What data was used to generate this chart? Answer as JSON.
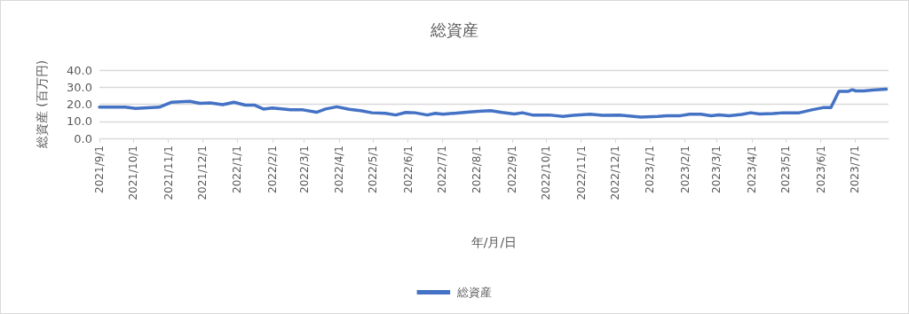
{
  "chart_data": {
    "type": "line",
    "title": "総資産",
    "xlabel": "年/月/日",
    "ylabel": "総資産 (百万円)",
    "x": [
      "2021-09-01",
      "2021-09-24",
      "2021-10-03",
      "2021-10-24",
      "2021-11-04",
      "2021-11-20",
      "2021-11-29",
      "2021-12-08",
      "2021-12-19",
      "2021-12-29",
      "2022-01-08",
      "2022-01-16",
      "2022-01-24",
      "2022-02-01",
      "2022-02-17",
      "2022-02-28",
      "2022-03-12",
      "2022-03-20",
      "2022-03-30",
      "2022-04-10",
      "2022-04-20",
      "2022-04-30",
      "2022-05-12",
      "2022-05-21",
      "2022-05-30",
      "2022-06-07",
      "2022-06-18",
      "2022-06-25",
      "2022-07-02",
      "2022-07-12",
      "2022-07-23",
      "2022-08-02",
      "2022-08-13",
      "2022-08-23",
      "2022-09-03",
      "2022-09-10",
      "2022-09-19",
      "2022-10-04",
      "2022-10-16",
      "2022-10-25",
      "2022-11-09",
      "2022-11-20",
      "2022-12-05",
      "2022-12-24",
      "2023-01-08",
      "2023-01-16",
      "2023-01-28",
      "2023-02-05",
      "2023-02-15",
      "2023-02-24",
      "2023-03-03",
      "2023-03-12",
      "2023-03-23",
      "2023-03-31",
      "2023-04-08",
      "2023-04-20",
      "2023-04-29",
      "2023-05-13",
      "2023-05-24",
      "2023-06-03",
      "2023-06-10",
      "2023-06-17",
      "2023-06-25",
      "2023-06-29",
      "2023-07-02",
      "2023-07-09",
      "2023-07-17",
      "2023-07-29"
    ],
    "series": [
      {
        "name": "総資産",
        "color": "#4472c4",
        "values": [
          18.3,
          18.3,
          17.5,
          18.3,
          21.2,
          21.7,
          20.5,
          20.8,
          19.7,
          21.2,
          19.5,
          19.5,
          17.2,
          17.8,
          16.7,
          16.7,
          15.3,
          17.2,
          18.5,
          17.0,
          16.2,
          15.0,
          14.7,
          13.7,
          15.2,
          15.0,
          13.7,
          14.7,
          14.2,
          14.7,
          15.3,
          15.8,
          16.2,
          15.2,
          14.3,
          15.0,
          13.7,
          13.7,
          12.8,
          13.5,
          14.2,
          13.5,
          13.6,
          12.5,
          12.8,
          13.3,
          13.3,
          14.2,
          14.2,
          13.3,
          13.8,
          13.3,
          14.0,
          15.0,
          14.3,
          14.5,
          15.0,
          15.0,
          16.7,
          18.0,
          18.0,
          27.5,
          27.5,
          28.5,
          27.8,
          27.8,
          28.3,
          28.8
        ]
      }
    ],
    "xlim": [
      "2021-09-01",
      "2023-07-31"
    ],
    "xticks": [
      {
        "value": "2021-09-01",
        "label": "2021/9/1"
      },
      {
        "value": "2021-10-01",
        "label": "2021/10/1"
      },
      {
        "value": "2021-11-01",
        "label": "2021/11/1"
      },
      {
        "value": "2021-12-01",
        "label": "2021/12/1"
      },
      {
        "value": "2022-01-01",
        "label": "2022/1/1"
      },
      {
        "value": "2022-02-01",
        "label": "2022/2/1"
      },
      {
        "value": "2022-03-01",
        "label": "2022/3/1"
      },
      {
        "value": "2022-04-01",
        "label": "2022/4/1"
      },
      {
        "value": "2022-05-01",
        "label": "2022/5/1"
      },
      {
        "value": "2022-06-01",
        "label": "2022/6/1"
      },
      {
        "value": "2022-07-01",
        "label": "2022/7/1"
      },
      {
        "value": "2022-08-01",
        "label": "2022/8/1"
      },
      {
        "value": "2022-09-01",
        "label": "2022/9/1"
      },
      {
        "value": "2022-10-01",
        "label": "2022/10/1"
      },
      {
        "value": "2022-11-01",
        "label": "2022/11/1"
      },
      {
        "value": "2022-12-01",
        "label": "2022/12/1"
      },
      {
        "value": "2023-01-01",
        "label": "2023/1/1"
      },
      {
        "value": "2023-02-01",
        "label": "2023/2/1"
      },
      {
        "value": "2023-03-01",
        "label": "2023/3/1"
      },
      {
        "value": "2023-04-01",
        "label": "2023/4/1"
      },
      {
        "value": "2023-05-01",
        "label": "2023/5/1"
      },
      {
        "value": "2023-06-01",
        "label": "2023/6/1"
      },
      {
        "value": "2023-07-01",
        "label": "2023/7/1"
      }
    ],
    "ylim": [
      0,
      40
    ],
    "yticks": [
      {
        "value": 0,
        "label": "0.0"
      },
      {
        "value": 10,
        "label": "10.0"
      },
      {
        "value": 20,
        "label": "20.0"
      },
      {
        "value": 30,
        "label": "30.0"
      },
      {
        "value": 40,
        "label": "40.0"
      }
    ],
    "grid": "y",
    "legend": "bottom",
    "marker": "none",
    "line_style": "solid"
  }
}
